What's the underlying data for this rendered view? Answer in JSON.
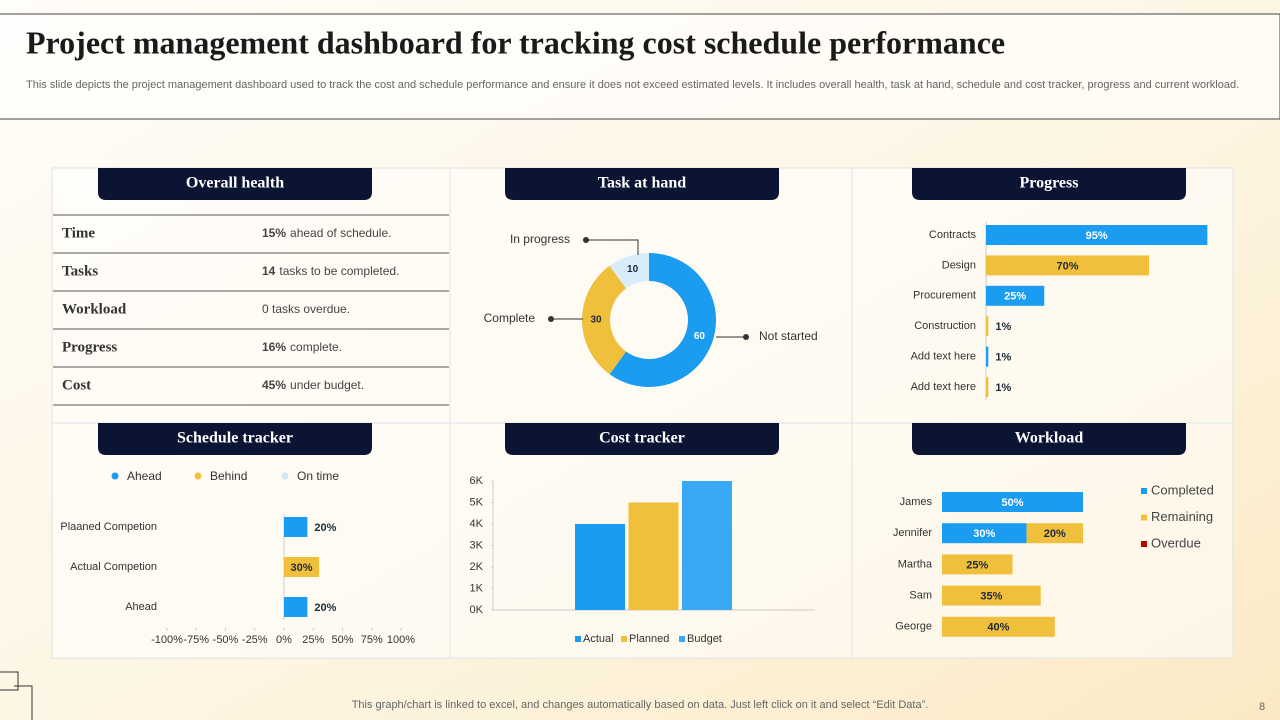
{
  "title": "Project management dashboard for tracking cost schedule performance",
  "subtitle": "This slide depicts the project management dashboard used to track the cost and schedule performance and ensure it does not exceed estimated levels. It includes overall health, task at hand, schedule and cost tracker, progress and current workload.",
  "footer": "This graph/chart is linked to excel,  and changes automatically based on data. Just left click on it and select “Edit Data”.",
  "page_number": "8",
  "overall_health": {
    "title": "Overall health",
    "rows": [
      {
        "label": "Time",
        "bold": "15%",
        "text": "ahead of schedule."
      },
      {
        "label": "Tasks",
        "bold": "14",
        "text": "tasks to be completed."
      },
      {
        "label": "Workload",
        "text": "0 tasks overdue."
      },
      {
        "label": "Progress",
        "bold": "16%",
        "text": "complete."
      },
      {
        "label": "Cost",
        "bold": "45%",
        "text": "under budget."
      }
    ]
  },
  "chart_data": [
    {
      "type": "donut",
      "title": "Task at hand",
      "categories": [
        "Not started",
        "Complete",
        "In progress"
      ],
      "values": [
        60,
        30,
        10
      ],
      "colors": [
        "#1a9cf0",
        "#f0bf3c",
        "#d8ecfa"
      ]
    },
    {
      "type": "hbar",
      "title": "Progress",
      "categories": [
        "Contracts",
        "Design",
        "Procurement",
        "Construction",
        "Add text here",
        "Add text here"
      ],
      "values": [
        95,
        70,
        25,
        1,
        1,
        1
      ],
      "value_labels": [
        "95%",
        "70%",
        "25%",
        "1%",
        "1%",
        "1%"
      ],
      "colors": [
        "#1a9cf0",
        "#f0bf3c",
        "#1a9cf0",
        "#f0bf3c",
        "#1a9cf0",
        "#f0bf3c"
      ],
      "xlim": [
        0,
        100
      ]
    },
    {
      "type": "hbar",
      "title": "Schedule tracker",
      "legend": [
        {
          "name": "Ahead",
          "color": "#1a9cf0"
        },
        {
          "name": "Behind",
          "color": "#f0bf3c"
        },
        {
          "name": "On time",
          "color": "#cfe7f9"
        }
      ],
      "categories": [
        "Plaaned Competion",
        "Actual Competion",
        "Ahead"
      ],
      "values": [
        20,
        30,
        20
      ],
      "value_labels": [
        "20%",
        "30%",
        "20%"
      ],
      "colors": [
        "#1a9cf0",
        "#f0bf3c",
        "#1a9cf0"
      ],
      "xlim": [
        -100,
        100
      ],
      "xticks": [
        {
          "value": -100,
          "label": "-100%"
        },
        {
          "value": -75,
          "label": "-75%"
        },
        {
          "value": -50,
          "label": "-50%"
        },
        {
          "value": -25,
          "label": "-25%"
        },
        {
          "value": 0,
          "label": "0%"
        },
        {
          "value": 25,
          "label": "25%"
        },
        {
          "value": 50,
          "label": "50%"
        },
        {
          "value": 75,
          "label": "75%"
        },
        {
          "value": 100,
          "label": "100%"
        }
      ]
    },
    {
      "type": "bar",
      "title": "Cost tracker",
      "categories": [
        null
      ],
      "series": [
        {
          "name": "Actual",
          "color": "#1a9cf0",
          "values": [
            4000
          ]
        },
        {
          "name": "Planned",
          "color": "#f0bf3c",
          "values": [
            5000
          ]
        },
        {
          "name": "Budget",
          "color": "#3aa9f5",
          "values": [
            6000
          ]
        }
      ],
      "ylim": [
        0,
        6000
      ],
      "yticks": [
        {
          "value": 0,
          "label": "0K"
        },
        {
          "value": 1000,
          "label": "1K"
        },
        {
          "value": 2000,
          "label": "2K"
        },
        {
          "value": 3000,
          "label": "3K"
        },
        {
          "value": 4000,
          "label": "4K"
        },
        {
          "value": 5000,
          "label": "5K"
        },
        {
          "value": 6000,
          "label": "6K"
        }
      ]
    },
    {
      "type": "stacked_hbar",
      "title": "Workload",
      "categories": [
        "James",
        "Jennifer",
        "Martha",
        "Sam",
        "George"
      ],
      "xlim": [
        0,
        100
      ],
      "series": [
        {
          "name": "Completed",
          "color": "#1a9cf0",
          "values": [
            50,
            30,
            null,
            null,
            null
          ],
          "value_labels": [
            "50%",
            "30%",
            null,
            null,
            null
          ]
        },
        {
          "name": "Remaining",
          "color": "#f0bf3c",
          "values": [
            null,
            20,
            25,
            35,
            40
          ],
          "value_labels": [
            null,
            "20%",
            "25%",
            "35%",
            "40%"
          ]
        },
        {
          "name": "Overdue",
          "color": "#c00000",
          "values": [
            null,
            null,
            null,
            null,
            null
          ]
        }
      ]
    }
  ]
}
